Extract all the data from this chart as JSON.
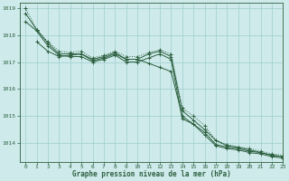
{
  "title": "Graphe pression niveau de la mer (hPa)",
  "background_color": "#ceeaea",
  "grid_color": "#9ecece",
  "line_color": "#2d6040",
  "xlim": [
    -0.5,
    23
  ],
  "ylim": [
    1013.3,
    1019.2
  ],
  "yticks": [
    1014,
    1015,
    1016,
    1017,
    1018,
    1019
  ],
  "xticks": [
    0,
    1,
    2,
    3,
    4,
    5,
    6,
    7,
    8,
    9,
    10,
    11,
    12,
    13,
    14,
    15,
    16,
    17,
    18,
    19,
    20,
    21,
    22,
    23
  ],
  "series": [
    {
      "x": [
        0,
        1,
        2,
        3,
        4,
        5,
        6,
        7,
        8,
        9,
        10,
        11,
        12,
        13,
        14,
        15,
        16,
        17,
        18,
        19,
        20,
        21,
        22,
        23
      ],
      "y": [
        1019.0,
        1018.2,
        1017.75,
        1017.4,
        1017.35,
        1017.4,
        1017.15,
        1017.25,
        1017.4,
        1017.2,
        1017.2,
        1017.35,
        1017.45,
        1017.3,
        1015.3,
        1015.0,
        1014.65,
        1014.1,
        1013.95,
        1013.85,
        1013.8,
        1013.7,
        1013.6,
        1013.55
      ],
      "linestyle": ":",
      "marker": "+"
    },
    {
      "x": [
        0,
        1,
        2,
        3,
        4,
        5,
        6,
        7,
        8,
        9,
        10,
        11,
        12,
        13,
        14,
        15,
        16,
        17,
        18,
        19,
        20,
        21,
        22,
        23
      ],
      "y": [
        1018.8,
        1018.2,
        1017.7,
        1017.3,
        1017.3,
        1017.3,
        1017.1,
        1017.2,
        1017.35,
        1017.1,
        1017.1,
        1017.3,
        1017.4,
        1017.2,
        1015.2,
        1014.85,
        1014.5,
        1014.1,
        1013.9,
        1013.85,
        1013.75,
        1013.65,
        1013.55,
        1013.5
      ],
      "linestyle": "-",
      "marker": "+"
    },
    {
      "x": [
        1,
        2,
        3,
        4,
        5,
        6,
        7,
        8,
        9,
        10,
        11,
        12,
        13,
        14,
        15,
        16,
        17,
        18,
        19,
        20,
        21,
        22,
        23
      ],
      "y": [
        1017.75,
        1017.4,
        1017.2,
        1017.25,
        1017.3,
        1017.05,
        1017.15,
        1017.3,
        1017.1,
        1017.1,
        1016.95,
        1016.8,
        1016.65,
        1015.0,
        1014.7,
        1014.4,
        1013.95,
        1013.85,
        1013.8,
        1013.7,
        1013.65,
        1013.55,
        1013.5
      ],
      "linestyle": "-",
      "marker": "+"
    },
    {
      "x": [
        0,
        1,
        2,
        3,
        4,
        5,
        6,
        7,
        8,
        9,
        10,
        11,
        12,
        13,
        14,
        15,
        16,
        17,
        18,
        19,
        20,
        21,
        22,
        23
      ],
      "y": [
        1018.5,
        1018.15,
        1017.6,
        1017.25,
        1017.2,
        1017.2,
        1017.0,
        1017.1,
        1017.25,
        1017.0,
        1017.0,
        1017.15,
        1017.3,
        1017.1,
        1014.9,
        1014.7,
        1014.3,
        1013.9,
        1013.8,
        1013.75,
        1013.65,
        1013.6,
        1013.5,
        1013.45
      ],
      "linestyle": "-",
      "marker": "+"
    }
  ]
}
